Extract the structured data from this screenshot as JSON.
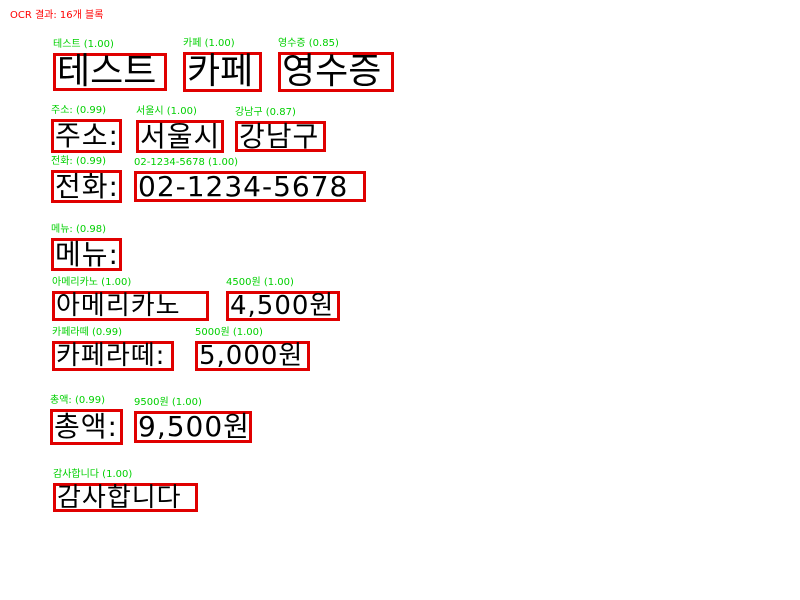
{
  "header": {
    "title": "OCR 결과: 16개 블록"
  },
  "blocks": [
    {
      "label": "테스트 (1.00)",
      "text": "테스트"
    },
    {
      "label": "카페 (1.00)",
      "text": "카페"
    },
    {
      "label": "영수증 (0.85)",
      "text": "영수증"
    },
    {
      "label": "주소: (0.99)",
      "text": "주소:"
    },
    {
      "label": "서울시 (1.00)",
      "text": "서울시"
    },
    {
      "label": "강남구 (0.87)",
      "text": "강남구"
    },
    {
      "label": "전화: (0.99)",
      "text": "전화:"
    },
    {
      "label": "02-1234-5678 (1.00)",
      "text": "02-1234-5678"
    },
    {
      "label": "메뉴: (0.98)",
      "text": "메뉴:"
    },
    {
      "label": "아메리카노 (1.00)",
      "text": "아메리카노"
    },
    {
      "label": "4500원 (1.00)",
      "text": "4,500원"
    },
    {
      "label": "카페라떼 (0.99)",
      "text": "카페라떼:"
    },
    {
      "label": "5000원 (1.00)",
      "text": "5,000원"
    },
    {
      "label": "총액: (0.99)",
      "text": "총액:"
    },
    {
      "label": "9500원 (1.00)",
      "text": "9,500원"
    },
    {
      "label": "감사합니다 (1.00)",
      "text": "감사합니다"
    }
  ],
  "colors": {
    "header": "#ff0000",
    "label": "#00d000",
    "box_border": "#e00000",
    "text": "#000000"
  }
}
